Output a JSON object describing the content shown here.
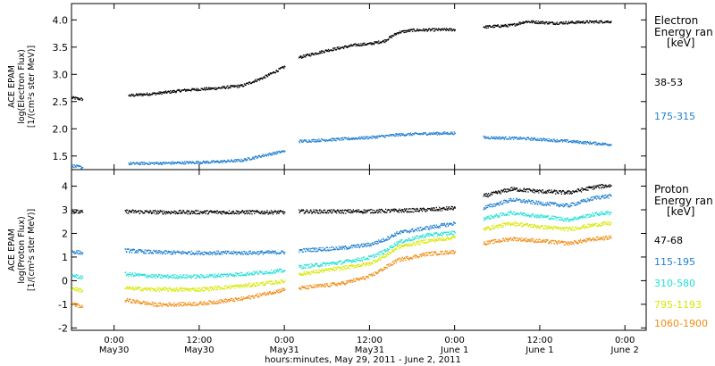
{
  "colors": {
    "black": "#000000",
    "blue": "#1f7fd0",
    "cyan": "#22e0d6",
    "yellow": "#d6e800",
    "orange": "#f08c14"
  },
  "xaxis": {
    "label": "hours:minutes, May 29, 2011 - June  2, 2011",
    "ticks": [
      {
        "t": 0,
        "time": "0:00",
        "date": "May30"
      },
      {
        "t": 12,
        "time": "12:00",
        "date": "May30"
      },
      {
        "t": 24,
        "time": "0:00",
        "date": "May31"
      },
      {
        "t": 36,
        "time": "12:00",
        "date": "May31"
      },
      {
        "t": 48,
        "time": "0:00",
        "date": "June 1"
      },
      {
        "t": 60,
        "time": "12:00",
        "date": "June 1"
      },
      {
        "t": 72,
        "time": "0:00",
        "date": "June 2"
      }
    ]
  },
  "chart_data": [
    {
      "type": "scatter",
      "ylabel": [
        "ACE EPAM",
        "log(Electron Flux)",
        "[1/(cm²s ster MeV)]"
      ],
      "ylim": [
        1.25,
        4.3
      ],
      "yticks": [
        "1.5",
        "2.0",
        "2.5",
        "3.0",
        "3.5",
        "4.0"
      ],
      "xlim_hours": [
        -6,
        75
      ],
      "legend_title": [
        "Electron",
        "Energy ran",
        "[keV]"
      ],
      "series": [
        {
          "name": "38-53",
          "color": "black",
          "segments": [
            {
              "x": [
                -6,
                -4.5
              ],
              "y": [
                2.58,
                2.55
              ]
            },
            {
              "x": [
                2,
                6,
                10,
                14,
                18,
                21,
                24
              ],
              "y": [
                2.62,
                2.66,
                2.72,
                2.75,
                2.8,
                2.95,
                3.15
              ]
            },
            {
              "x": [
                26,
                30,
                34,
                36,
                38,
                40,
                42,
                46,
                48
              ],
              "y": [
                3.32,
                3.45,
                3.55,
                3.57,
                3.62,
                3.78,
                3.82,
                3.83,
                3.83
              ]
            },
            {
              "x": [
                52,
                56,
                58,
                62,
                66,
                70
              ],
              "y": [
                3.88,
                3.91,
                3.98,
                3.95,
                3.97,
                3.98
              ]
            }
          ]
        },
        {
          "name": "175-315",
          "color": "blue",
          "segments": [
            {
              "x": [
                -6,
                -4.5
              ],
              "y": [
                1.33,
                1.3
              ]
            },
            {
              "x": [
                2,
                8,
                14,
                18,
                21,
                24
              ],
              "y": [
                1.37,
                1.38,
                1.4,
                1.43,
                1.52,
                1.6
              ]
            },
            {
              "x": [
                26,
                32,
                36,
                40,
                44,
                48
              ],
              "y": [
                1.78,
                1.82,
                1.85,
                1.9,
                1.92,
                1.93
              ]
            },
            {
              "x": [
                52,
                58,
                64,
                70
              ],
              "y": [
                1.85,
                1.83,
                1.78,
                1.72
              ]
            }
          ]
        }
      ]
    },
    {
      "type": "scatter",
      "ylabel": [
        "ACE EPAM",
        "log(Proton Flux)",
        "[1/(cm²s ster MeV)]"
      ],
      "ylim": [
        -2.1,
        4.7
      ],
      "yticks": [
        "-2",
        "-1",
        "0",
        "1",
        "2",
        "3",
        "4"
      ],
      "xlim_hours": [
        -6,
        75
      ],
      "legend_title": [
        "Proton",
        "Energy ran",
        "[keV]"
      ],
      "series": [
        {
          "name": "47-68",
          "color": "black",
          "segments": [
            {
              "x": [
                -6,
                -4.5
              ],
              "y": [
                2.95,
                2.92
              ]
            },
            {
              "x": [
                1.5,
                6,
                12,
                18,
                24
              ],
              "y": [
                2.95,
                2.92,
                2.92,
                2.92,
                2.92
              ]
            },
            {
              "x": [
                26,
                32,
                38,
                42,
                46,
                48
              ],
              "y": [
                2.95,
                2.95,
                2.97,
                3.0,
                3.05,
                3.1
              ]
            },
            {
              "x": [
                52,
                56,
                60,
                64,
                68,
                70
              ],
              "y": [
                3.6,
                3.9,
                3.8,
                3.75,
                4.0,
                4.05
              ]
            }
          ]
        },
        {
          "name": "115-195",
          "color": "blue",
          "segments": [
            {
              "x": [
                -6,
                -4.5
              ],
              "y": [
                1.25,
                1.2
              ]
            },
            {
              "x": [
                1.5,
                6,
                12,
                18,
                24
              ],
              "y": [
                1.3,
                1.22,
                1.2,
                1.2,
                1.22
              ]
            },
            {
              "x": [
                26,
                32,
                36,
                38,
                40,
                44,
                48
              ],
              "y": [
                1.3,
                1.4,
                1.55,
                1.75,
                2.05,
                2.25,
                2.45
              ]
            },
            {
              "x": [
                52,
                56,
                60,
                64,
                68,
                70
              ],
              "y": [
                3.1,
                3.45,
                3.3,
                3.2,
                3.55,
                3.6
              ]
            }
          ]
        },
        {
          "name": "310-580",
          "color": "cyan",
          "segments": [
            {
              "x": [
                -6,
                -4.5
              ],
              "y": [
                0.25,
                0.15
              ]
            },
            {
              "x": [
                1.5,
                6,
                12,
                18,
                24
              ],
              "y": [
                0.3,
                0.2,
                0.2,
                0.3,
                0.45
              ]
            },
            {
              "x": [
                26,
                32,
                36,
                38,
                40,
                44,
                48
              ],
              "y": [
                0.6,
                0.8,
                1.0,
                1.25,
                1.65,
                1.95,
                2.05
              ]
            },
            {
              "x": [
                52,
                56,
                60,
                64,
                68,
                70
              ],
              "y": [
                2.65,
                2.9,
                2.75,
                2.6,
                2.85,
                2.9
              ]
            }
          ]
        },
        {
          "name": "795-1193",
          "color": "yellow",
          "segments": [
            {
              "x": [
                -6,
                -4.5
              ],
              "y": [
                -0.3,
                -0.4
              ]
            },
            {
              "x": [
                1.5,
                6,
                12,
                18,
                24
              ],
              "y": [
                -0.3,
                -0.35,
                -0.35,
                -0.2,
                0.0
              ]
            },
            {
              "x": [
                26,
                32,
                36,
                38,
                40,
                44,
                48
              ],
              "y": [
                0.3,
                0.55,
                0.75,
                1.05,
                1.45,
                1.7,
                1.85
              ]
            },
            {
              "x": [
                52,
                56,
                60,
                64,
                68,
                70
              ],
              "y": [
                2.2,
                2.45,
                2.3,
                2.2,
                2.4,
                2.45
              ]
            }
          ]
        },
        {
          "name": "1060-1900",
          "color": "orange",
          "segments": [
            {
              "x": [
                -6,
                -4.5
              ],
              "y": [
                -0.95,
                -1.1
              ]
            },
            {
              "x": [
                1.5,
                6,
                12,
                18,
                24
              ],
              "y": [
                -0.8,
                -1.0,
                -0.95,
                -0.75,
                -0.35
              ]
            },
            {
              "x": [
                26,
                32,
                36,
                38,
                40,
                44,
                48
              ],
              "y": [
                -0.3,
                -0.1,
                0.2,
                0.55,
                0.9,
                1.15,
                1.25
              ]
            },
            {
              "x": [
                52,
                56,
                60,
                64,
                68,
                70
              ],
              "y": [
                1.6,
                1.8,
                1.7,
                1.6,
                1.8,
                1.85
              ]
            }
          ]
        }
      ]
    }
  ]
}
